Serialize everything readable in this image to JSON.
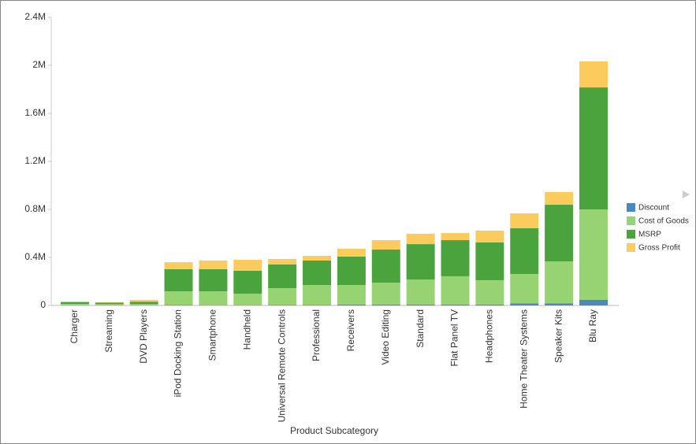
{
  "chart_data": {
    "type": "stacked-bar",
    "x_label": "Product Subcategory",
    "categories": [
      "Charger",
      "Streaming",
      "DVD Players",
      "iPod Docking Station",
      "Smartphone",
      "Handheld",
      "Universal Remote Controls",
      "Professional",
      "Receivers",
      "Video Editing",
      "Standard",
      "Flat Panel TV",
      "Headphones",
      "Home Theater Systems",
      "Speaker Kits",
      "Blu Ray"
    ],
    "series": [
      {
        "name": "Discount",
        "color": "#4e86c4",
        "values": [
          1000,
          1000,
          1000,
          3000,
          2000,
          2000,
          3000,
          3000,
          8000,
          8000,
          8000,
          8000,
          8000,
          18000,
          18000,
          46000
        ]
      },
      {
        "name": "Cost of Goods",
        "color": "#98d373",
        "values": [
          12000,
          10000,
          10000,
          115000,
          116000,
          96000,
          141000,
          167000,
          162000,
          182000,
          208000,
          235000,
          202000,
          244000,
          349000,
          754000
        ]
      },
      {
        "name": "MSRP",
        "color": "#4aa33d",
        "values": [
          15000,
          12000,
          20000,
          184000,
          184000,
          191000,
          197000,
          204000,
          237000,
          276000,
          295000,
          301000,
          315000,
          381000,
          472000,
          1016000
        ]
      },
      {
        "name": "Gross Profit",
        "color": "#fccb5d",
        "values": [
          5000,
          4000,
          15000,
          58000,
          72000,
          91000,
          46000,
          39000,
          65000,
          78000,
          86000,
          59000,
          98000,
          124000,
          105000,
          217000
        ]
      }
    ],
    "ylim": [
      0,
      2400000
    ],
    "yticks": [
      0,
      {
        "value": 400000,
        "label": "0.4M"
      },
      {
        "value": 800000,
        "label": "0.8M"
      },
      {
        "value": 1200000,
        "label": "1.2M"
      },
      {
        "value": 1600000,
        "label": "1.6M"
      },
      {
        "value": 2000000,
        "label": "2M"
      },
      {
        "value": 2400000,
        "label": "2.4M"
      }
    ],
    "legend": "right"
  }
}
